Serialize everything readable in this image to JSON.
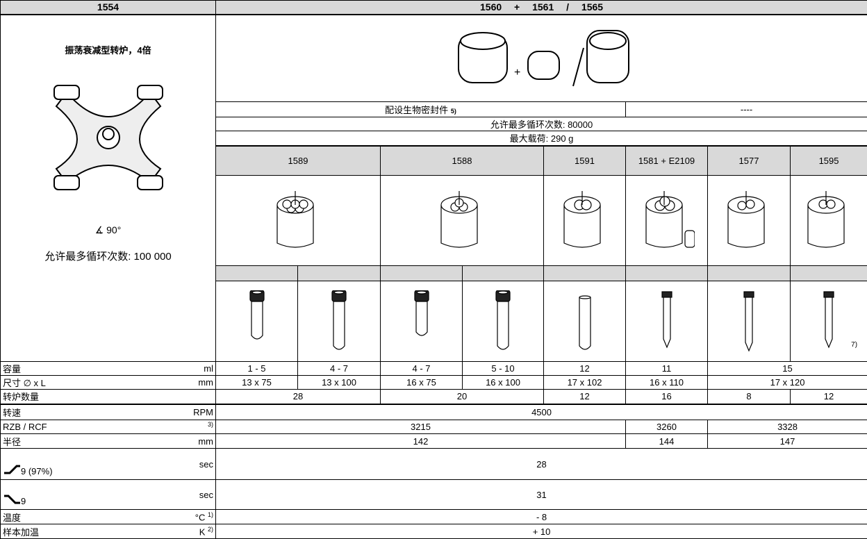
{
  "header": {
    "rotor": "1554",
    "buckets": "1560 + 1561 / 1565"
  },
  "rotor": {
    "title": "振荡衰减型转炉，4倍",
    "angle": "90°",
    "cycles": "允许最多循环次数: 100 000"
  },
  "seal": {
    "label": "配设生物密封件",
    "note": "5)",
    "none": "----"
  },
  "bucket_cycles": "允许最多循环次数: 80000",
  "max_load": "最大载荷: 290 g",
  "adapters": [
    "1589",
    "1588",
    "1591",
    "1581 + E2109",
    "1577",
    "1595"
  ],
  "tube_note": "7)",
  "rows": [
    {
      "label": "容量",
      "unit": "ml",
      "cells": [
        "1 - 5",
        "4 - 7",
        "4 - 7",
        "5 - 10",
        "12",
        "11",
        "15"
      ]
    },
    {
      "label": "尺寸 ∅ x L",
      "unit": "mm",
      "cells": [
        "13 x 75",
        "13 x 100",
        "16 x 75",
        "16 x 100",
        "17 x 102",
        "16 x 110",
        "17 x 120"
      ]
    },
    {
      "label": "转炉数量",
      "cells": [
        "28",
        "20",
        "12",
        "16",
        "8",
        "12"
      ]
    },
    {
      "label": "转速",
      "unit": "RPM",
      "cells": [
        "4500"
      ]
    },
    {
      "label": "RZB / RCF",
      "note": "3)",
      "cells": [
        "3215",
        "3260",
        "3328"
      ]
    },
    {
      "label": "半径",
      "unit": "mm",
      "cells": [
        "142",
        "144",
        "147"
      ]
    },
    {
      "label": "9 (97%)",
      "unit": "sec",
      "cells": [
        "28"
      ]
    },
    {
      "label": "9",
      "unit": "sec",
      "cells": [
        "31"
      ]
    },
    {
      "label": "温度",
      "unit": "°C",
      "note": "1)",
      "cells": [
        "- 8"
      ]
    },
    {
      "label": "样本加温",
      "unit": "K",
      "note": "2)",
      "cells": [
        "+ 10"
      ]
    }
  ]
}
